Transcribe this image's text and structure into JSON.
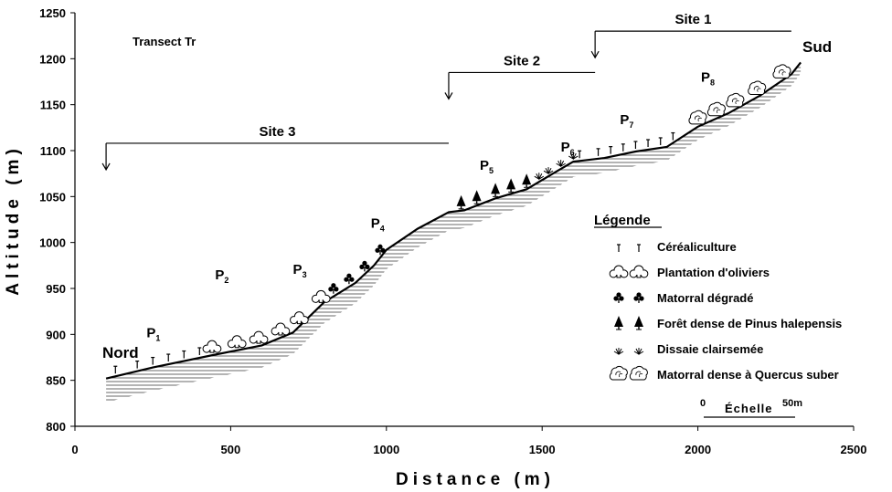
{
  "chart_data": {
    "type": "area",
    "title": "Transect Tr",
    "xlabel": "Distance (m)",
    "ylabel": "Altitude (m)",
    "xlim": [
      0,
      2500
    ],
    "ylim": [
      800,
      1250
    ],
    "xticks": [
      0,
      500,
      1000,
      1500,
      2000,
      2500
    ],
    "yticks": [
      800,
      850,
      900,
      950,
      1000,
      1050,
      1100,
      1150,
      1200,
      1250
    ],
    "grid": false,
    "profile": {
      "x": [
        100,
        250,
        450,
        600,
        700,
        800,
        900,
        960,
        1000,
        1100,
        1200,
        1250,
        1350,
        1450,
        1550,
        1600,
        1700,
        1800,
        1900,
        2000,
        2100,
        2200,
        2300,
        2330
      ],
      "y": [
        852,
        864,
        878,
        888,
        902,
        935,
        956,
        975,
        992,
        1015,
        1033,
        1035,
        1048,
        1058,
        1078,
        1088,
        1092,
        1099,
        1104,
        1126,
        1141,
        1160,
        1183,
        1196
      ]
    },
    "end_labels": {
      "north": "Nord",
      "south": "Sud"
    },
    "plots": [
      {
        "name": "P",
        "sub": "1",
        "x": 230,
        "y": 897
      },
      {
        "name": "P",
        "sub": "2",
        "x": 450,
        "y": 960
      },
      {
        "name": "P",
        "sub": "3",
        "x": 700,
        "y": 966
      },
      {
        "name": "P",
        "sub": "4",
        "x": 950,
        "y": 1016
      },
      {
        "name": "P",
        "sub": "5",
        "x": 1300,
        "y": 1079
      },
      {
        "name": "P",
        "sub": "6",
        "x": 1560,
        "y": 1099
      },
      {
        "name": "P",
        "sub": "7",
        "x": 1750,
        "y": 1129
      },
      {
        "name": "P",
        "sub": "8",
        "x": 2010,
        "y": 1175
      }
    ],
    "sites": [
      {
        "label": "Site 1",
        "x_start": 1670,
        "x_end": 2300,
        "y": 1230
      },
      {
        "label": "Site 2",
        "x_start": 1200,
        "x_end": 1670,
        "y": 1185
      },
      {
        "label": "Site 3",
        "x_start": 100,
        "x_end": 1200,
        "y": 1108
      }
    ],
    "markers": [
      {
        "type": "cereal",
        "x": [
          130,
          200,
          250,
          300,
          350,
          400,
          1620,
          1680,
          1720,
          1760,
          1800,
          1840,
          1880,
          1920
        ]
      },
      {
        "type": "olive",
        "x": [
          440,
          520,
          590,
          660,
          720,
          790,
          2000,
          2060,
          2120,
          2190,
          2270
        ]
      },
      {
        "type": "matorral",
        "x": [
          830,
          880,
          930,
          980
        ]
      },
      {
        "type": "pine",
        "x": [
          1240,
          1290,
          1350,
          1400,
          1450
        ]
      },
      {
        "type": "diss",
        "x": [
          1490,
          1520,
          1560,
          1600
        ]
      }
    ],
    "legend": {
      "title": "Légende",
      "position": "right",
      "items": [
        {
          "icon": "cereal",
          "label": "Céréaliculture"
        },
        {
          "icon": "olive",
          "label": "Plantation d'oliviers"
        },
        {
          "icon": "matorral",
          "label": "Matorral dégradé"
        },
        {
          "icon": "pine",
          "label": "Forêt dense de Pinus halepensis"
        },
        {
          "icon": "diss",
          "label": "Dissaie clairsemée"
        },
        {
          "icon": "quercus",
          "label": "Matorral dense à Quercus suber"
        }
      ]
    },
    "scale": {
      "start": "0",
      "label": "Échelle",
      "end": "50m"
    }
  }
}
